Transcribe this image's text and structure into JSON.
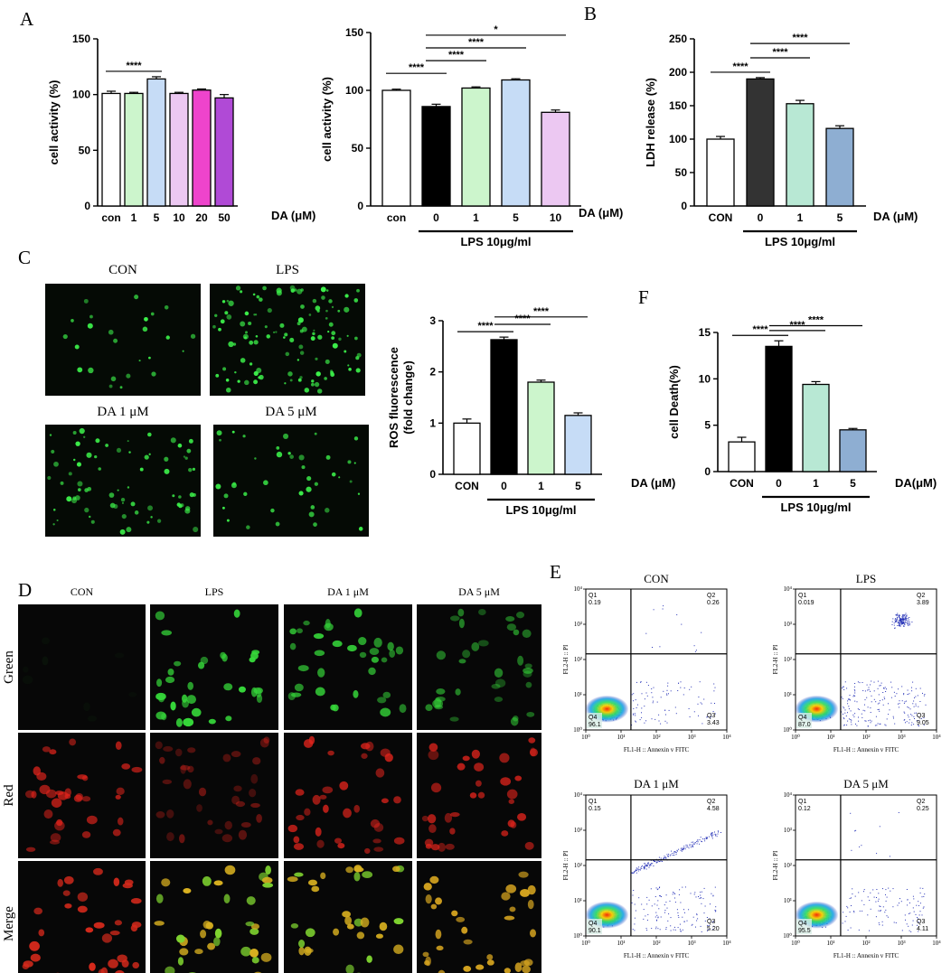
{
  "panel_labels": {
    "A": "A",
    "B": "B",
    "C": "C",
    "D": "D",
    "E": "E",
    "F": "F"
  },
  "colors": {
    "white": "#ffffff",
    "black": "#000000",
    "dark": "#333333",
    "green": "#ccf5cc",
    "blue": "#c6dcf6",
    "lavender": "#ecc8f2",
    "magenta": "#ee44cc",
    "purple": "#b04ad6",
    "mint": "#b8e8d4",
    "steel": "#8eaed2",
    "deepgreen": "#5bc9a9"
  },
  "chart_data": [
    {
      "id": "A1",
      "type": "bar",
      "ylabel": "cell activity (%)",
      "ylim": [
        0,
        150
      ],
      "yticks": [
        0,
        50,
        100,
        150
      ],
      "categories": [
        "con",
        "1",
        "5",
        "10",
        "20",
        "50"
      ],
      "values": [
        101,
        101,
        114,
        101,
        104,
        97
      ],
      "errors": [
        2,
        1,
        2,
        1,
        1,
        3
      ],
      "bar_colors": [
        "white",
        "green",
        "blue",
        "lavender",
        "magenta",
        "purple"
      ],
      "xlabel": "DA (μM)",
      "significance": [
        {
          "from": 0,
          "to": 2,
          "label": "****"
        }
      ]
    },
    {
      "id": "A2",
      "type": "bar",
      "ylabel": "cell activity (%)",
      "ylim": [
        0,
        150
      ],
      "yticks": [
        0,
        50,
        100,
        150
      ],
      "categories": [
        "con",
        "0",
        "1",
        "5",
        "10"
      ],
      "values": [
        100,
        86,
        102,
        109,
        81
      ],
      "errors": [
        1,
        2,
        1,
        1,
        2
      ],
      "bar_colors": [
        "white",
        "black",
        "green",
        "blue",
        "lavender"
      ],
      "xlabel": "DA (μM)",
      "group_label": "LPS 10μg/ml",
      "group_from": 1,
      "group_to": 4,
      "significance": [
        {
          "from": 0,
          "to": 1,
          "label": "****"
        },
        {
          "from": 1,
          "to": 2,
          "label": "****"
        },
        {
          "from": 1,
          "to": 3,
          "label": "****"
        },
        {
          "from": 1,
          "to": 4,
          "label": "*"
        }
      ]
    },
    {
      "id": "B",
      "type": "bar",
      "ylabel": "LDH release (%)",
      "ylim": [
        0,
        250
      ],
      "yticks": [
        0,
        50,
        100,
        150,
        200,
        250
      ],
      "categories": [
        "CON",
        "0",
        "1",
        "5"
      ],
      "values": [
        100,
        190,
        153,
        116
      ],
      "errors": [
        4,
        2,
        5,
        4
      ],
      "bar_colors": [
        "white",
        "dark",
        "mint",
        "steel"
      ],
      "xlabel": "DA (μM)",
      "group_label": "LPS 10μg/ml",
      "group_from": 1,
      "group_to": 3,
      "significance": [
        {
          "from": 0,
          "to": 1,
          "label": "****"
        },
        {
          "from": 1,
          "to": 2,
          "label": "****"
        },
        {
          "from": 1,
          "to": 3,
          "label": "****"
        }
      ]
    },
    {
      "id": "C",
      "type": "bar",
      "ylabel": "ROS fluorescence",
      "ylabel2": "(fold change)",
      "ylim": [
        0,
        3
      ],
      "yticks": [
        0,
        1,
        2,
        3
      ],
      "categories": [
        "CON",
        "0",
        "1",
        "5"
      ],
      "values": [
        1.0,
        2.63,
        1.8,
        1.15
      ],
      "errors": [
        0.08,
        0.05,
        0.04,
        0.05
      ],
      "bar_colors": [
        "white",
        "black",
        "green",
        "blue"
      ],
      "xlabel": "DA (μM)",
      "group_label": "LPS 10μg/ml",
      "group_from": 1,
      "group_to": 3,
      "significance": [
        {
          "from": 0,
          "to": 1,
          "label": "****"
        },
        {
          "from": 1,
          "to": 2,
          "label": "****"
        },
        {
          "from": 1,
          "to": 3,
          "label": "****"
        }
      ]
    },
    {
      "id": "F",
      "type": "bar",
      "ylabel": "cell Death(%)",
      "ylim": [
        0,
        15
      ],
      "yticks": [
        0,
        5,
        10,
        15
      ],
      "categories": [
        "CON",
        "0",
        "1",
        "5"
      ],
      "values": [
        3.2,
        13.5,
        9.4,
        4.5
      ],
      "errors": [
        0.5,
        0.6,
        0.3,
        0.15
      ],
      "bar_colors": [
        "white",
        "black",
        "mint",
        "steel"
      ],
      "xlabel": "DA(μM)",
      "group_label": "LPS 10μg/ml",
      "group_from": 1,
      "group_to": 3,
      "significance": [
        {
          "from": 0,
          "to": 1,
          "label": "****"
        },
        {
          "from": 1,
          "to": 2,
          "label": "****"
        },
        {
          "from": 1,
          "to": 3,
          "label": "****"
        }
      ]
    }
  ],
  "ros_images": [
    {
      "title": "CON",
      "density": 0.15
    },
    {
      "title": "LPS",
      "density": 1.0
    },
    {
      "title": "DA 1 μM",
      "density": 0.6
    },
    {
      "title": "DA 5 μM",
      "density": 0.3
    }
  ],
  "jc1": {
    "columns": [
      "CON",
      "LPS",
      "DA 1 μM",
      "DA 5 μM"
    ],
    "rows": [
      "Green",
      "Red",
      "Merge"
    ]
  },
  "flow": {
    "x_axis_label": "FL1-H :: Annexin v FITC",
    "y_axis_label": "FL2-H :: PI",
    "x_ticks": [
      "10⁰",
      "10¹",
      "10²",
      "10³",
      "10⁴"
    ],
    "y_ticks": [
      "10⁰",
      "10¹",
      "10²",
      "10³",
      "10⁴"
    ],
    "plots": [
      {
        "title": "CON",
        "q1": "0.19",
        "q2": "0.26",
        "q3": "3.43",
        "q4": "96.1"
      },
      {
        "title": "LPS",
        "q1": "0.019",
        "q2": "3.89",
        "q3": "9.05",
        "q4": "87.0"
      },
      {
        "title": "DA 1 μM",
        "q1": "0.15",
        "q2": "4.58",
        "q3": "5.20",
        "q4": "90.1"
      },
      {
        "title": "DA 5 μM",
        "q1": "0.12",
        "q2": "0.25",
        "q3": "4.11",
        "q4": "95.5"
      }
    ]
  }
}
